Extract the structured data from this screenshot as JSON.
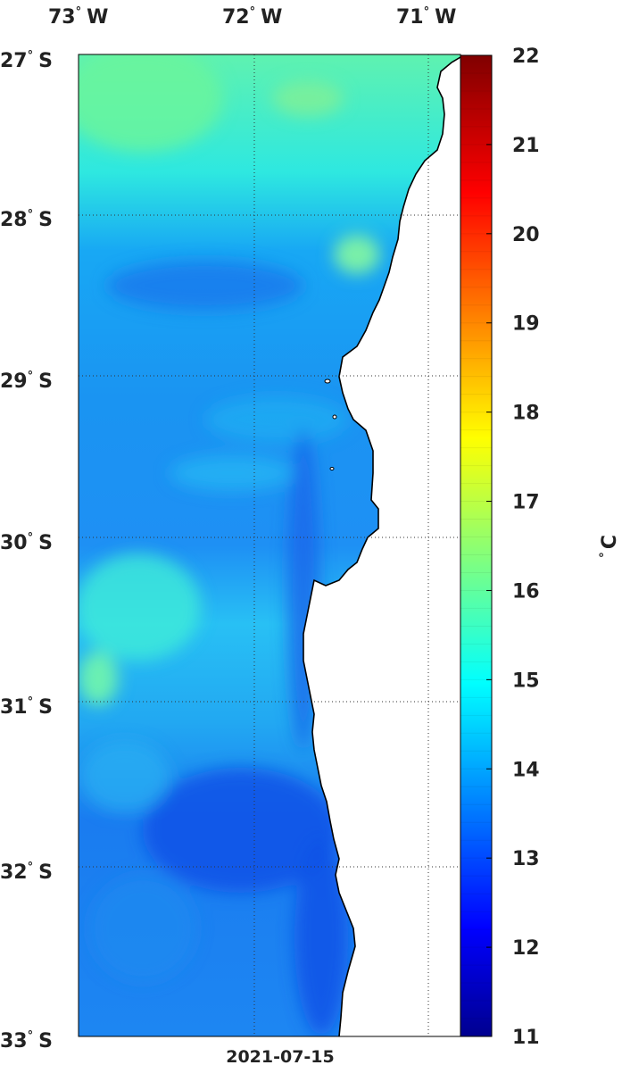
{
  "map": {
    "lon_labels": [
      "73",
      "72",
      "71"
    ],
    "lon_hemisphere": "W",
    "lat_labels": [
      "27",
      "28",
      "29",
      "30",
      "31",
      "32",
      "33"
    ],
    "lat_hemisphere": "S",
    "degree_symbol": "°",
    "date": "2021-07-15",
    "colors": {
      "land": "#ffffff",
      "coast": "#000000",
      "grid": "#333333"
    }
  },
  "colorbar": {
    "tick_labels": [
      "22",
      "21",
      "20",
      "19",
      "18",
      "17",
      "16",
      "15",
      "14",
      "13",
      "12",
      "11"
    ],
    "min": 11,
    "max": 22,
    "unit_degree": "°",
    "unit_letter": "C",
    "colormap": "jet"
  }
}
